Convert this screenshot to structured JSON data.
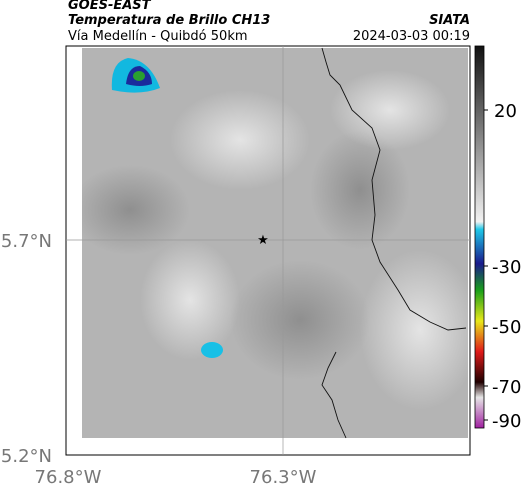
{
  "header": {
    "source": "GOES-EAST",
    "title": "Temperatura de Brillo CH13",
    "subtitle": "Vía Medellín - Quibdó 50km",
    "agency": "SIATA",
    "timestamp": "2024-03-03 00:19"
  },
  "axes": {
    "lat_ticks": [
      "5.7°N",
      "5.2°N"
    ],
    "lon_ticks": [
      "76.8°W",
      "76.3°W"
    ]
  },
  "colorbar": {
    "ticks": [
      20,
      -30,
      -50,
      -70,
      -90
    ]
  }
}
